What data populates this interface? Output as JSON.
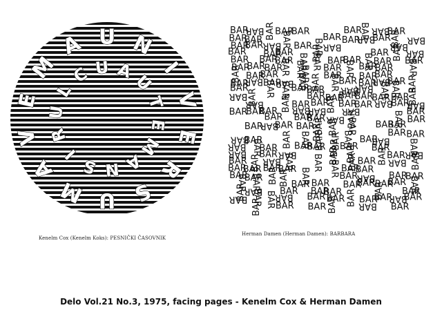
{
  "left_artwork": {
    "outer_ring_letters": [
      "U",
      "N",
      "I",
      "V",
      "E",
      "R",
      "S",
      "U",
      "M",
      "A",
      "V",
      "E",
      "M",
      "A"
    ],
    "inner_ring_letters": [
      "A",
      "U",
      "T",
      "E",
      "M",
      "A",
      "N",
      "S",
      "I",
      "R",
      "U",
      "L",
      "C",
      "U"
    ],
    "caption": "Kenelm Cox (Kenelm Koks): PESNIČKI ČASOVNIK"
  },
  "right_artwork": {
    "word": "BAR",
    "caption": "Herman Damen (Herman Damen): BARBARA"
  },
  "footer": {
    "caption": "Delo Vol.21 No.3, 1975, facing pages - Kenelm Cox & Herman Damen"
  }
}
